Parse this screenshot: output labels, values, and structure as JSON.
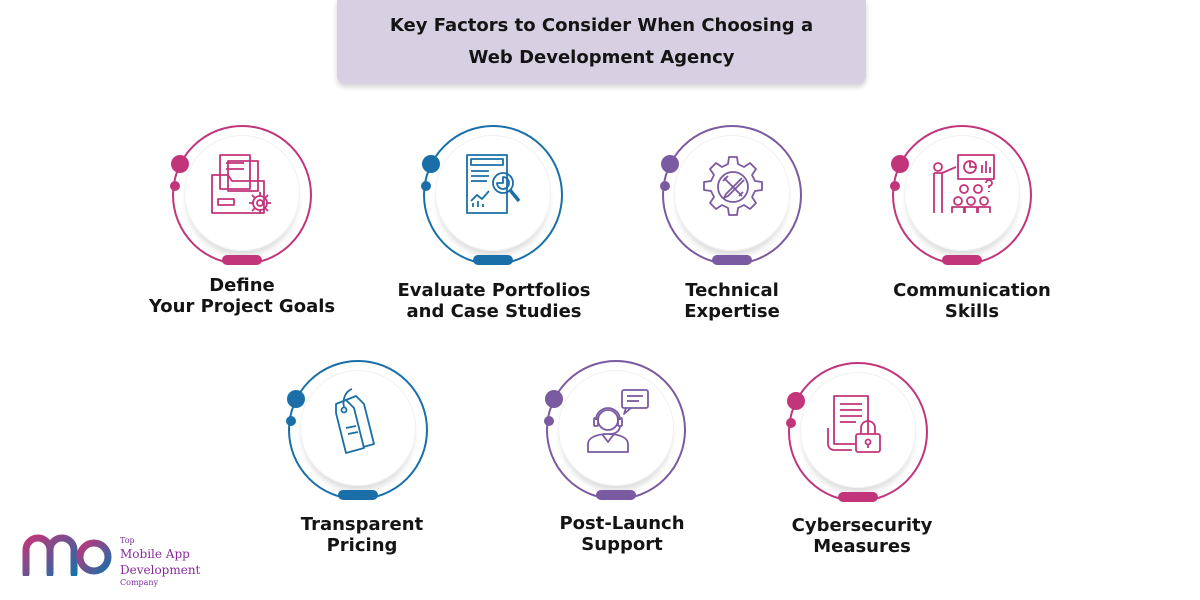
{
  "title": {
    "line1": "Key Factors to Consider When Choosing a",
    "line2": "Web Development Agency"
  },
  "factors": [
    {
      "line1": "Define",
      "line2": "Your Project Goals",
      "icon": "folder-gear-icon",
      "color": "#c2357a"
    },
    {
      "line1": "Evaluate Portfolios",
      "line2": "and Case Studies",
      "icon": "report-magnifier-icon",
      "color": "#1a6fa8"
    },
    {
      "line1": "Technical",
      "line2": "Expertise",
      "icon": "gear-tools-icon",
      "color": "#7a5aa0"
    },
    {
      "line1": "Communication",
      "line2": "Skills",
      "icon": "presentation-icon",
      "color": "#c2357a"
    },
    {
      "line1": "Transparent",
      "line2": "Pricing",
      "icon": "price-tags-icon",
      "color": "#1a6fa8"
    },
    {
      "line1": "Post-Launch",
      "line2": "Support",
      "icon": "support-agent-icon",
      "color": "#7a5aa0"
    },
    {
      "line1": "Cybersecurity",
      "line2": "Measures",
      "icon": "document-lock-icon",
      "color": "#c2357a"
    }
  ],
  "logo": {
    "line1": "Top",
    "line2": "Mobile App Development",
    "line3": "Company",
    "gradient_start": "#c2357a",
    "gradient_end": "#1a6fa8"
  }
}
